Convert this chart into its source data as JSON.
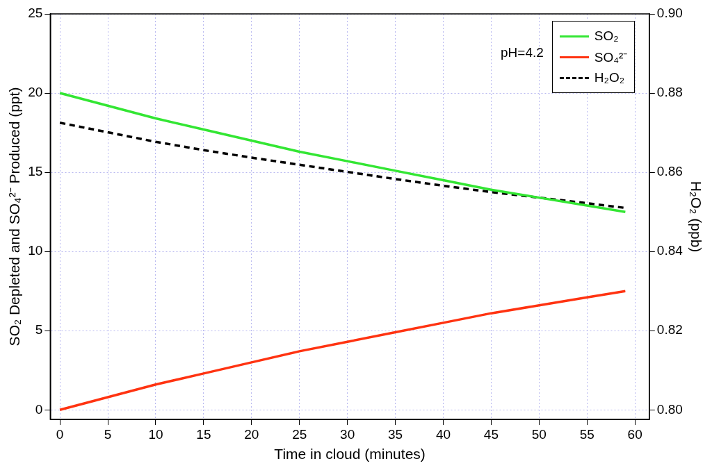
{
  "chart_data": {
    "type": "line",
    "xlabel": "Time in cloud (minutes)",
    "ylabel": "SO₂ Depleted and SO₄²⁻ Produced (ppt)",
    "y2label": "H₂O₂ (ppb)",
    "annotations": [
      "pH=4.2"
    ],
    "series": [
      {
        "name": "SO₂",
        "color": "#33e633",
        "x": [
          0,
          5,
          10,
          15,
          20,
          25,
          30,
          35,
          40,
          45,
          50,
          55,
          59
        ],
        "values": [
          20,
          19.2,
          18.4,
          17.7,
          17.0,
          16.3,
          15.7,
          15.1,
          14.5,
          13.9,
          13.4,
          12.9,
          12.5
        ]
      },
      {
        "name": "SO₄²⁻",
        "color": "#ff3311",
        "x": [
          0,
          5,
          10,
          15,
          20,
          25,
          30,
          35,
          40,
          45,
          50,
          55,
          59
        ],
        "values": [
          0,
          0.8,
          1.6,
          2.3,
          3.0,
          3.7,
          4.3,
          4.9,
          5.5,
          6.1,
          6.6,
          7.1,
          7.5
        ]
      },
      {
        "name": "H₂O₂",
        "color": "#000000",
        "axis": "y2",
        "line_style": "dashed",
        "x": [
          0,
          5,
          10,
          15,
          20,
          25,
          30,
          35,
          40,
          45,
          50,
          55,
          59
        ],
        "values": [
          0.8725,
          0.8701,
          0.8677,
          0.8656,
          0.8637,
          0.8619,
          0.8601,
          0.8583,
          0.8566,
          0.855,
          0.8536,
          0.8522,
          0.851
        ]
      }
    ],
    "xlim": [
      -1,
      61.5
    ],
    "xticks": [
      0,
      5,
      10,
      15,
      20,
      25,
      30,
      35,
      40,
      45,
      50,
      55,
      60
    ],
    "ylim": [
      -0.6,
      25
    ],
    "yticks": [
      0,
      5,
      10,
      15,
      20,
      25
    ],
    "y2lim": [
      0.7976,
      0.9
    ],
    "y2ticks": [
      {
        "value": 0.8,
        "label": "0.80"
      },
      {
        "value": 0.82,
        "label": "0.82"
      },
      {
        "value": 0.84,
        "label": "0.84"
      },
      {
        "value": 0.86,
        "label": "0.86"
      },
      {
        "value": 0.88,
        "label": "0.88"
      },
      {
        "value": 0.9,
        "label": "0.90"
      }
    ],
    "grid": true,
    "legend": "top right",
    "marker": "none",
    "line_style": "solid"
  }
}
